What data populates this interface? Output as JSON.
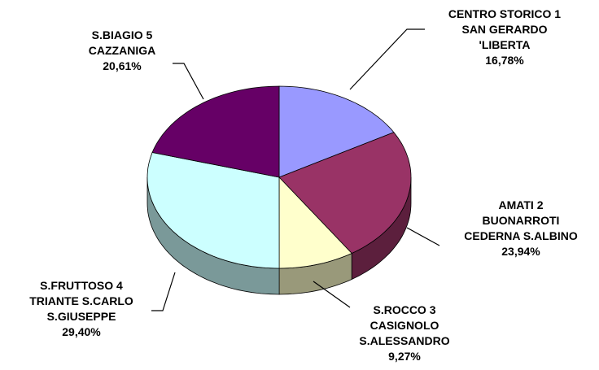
{
  "chart_data": {
    "type": "pie",
    "categories": [
      "CENTRO STORICO  1\nSAN GERARDO\n'LIBERTA",
      "AMATI  2\nBUONARROTI\nCEDERNA S.ALBINO",
      "S.ROCCO  3\nCASIGNOLO\nS.ALESSANDRO",
      "S.FRUTTOSO  4\nTRIANTE S.CARLO\nS.GIUSEPPE",
      "S.BIAGIO  5\nCAZZANIGA"
    ],
    "values": [
      16.78,
      23.94,
      9.27,
      29.4,
      20.61
    ],
    "value_labels": [
      "16,78%",
      "23,94%",
      "9,27%",
      "29,40%",
      "20,61%"
    ],
    "colors": [
      "#9999ff",
      "#993366",
      "#ffffcc",
      "#ccffff",
      "#660066"
    ]
  }
}
